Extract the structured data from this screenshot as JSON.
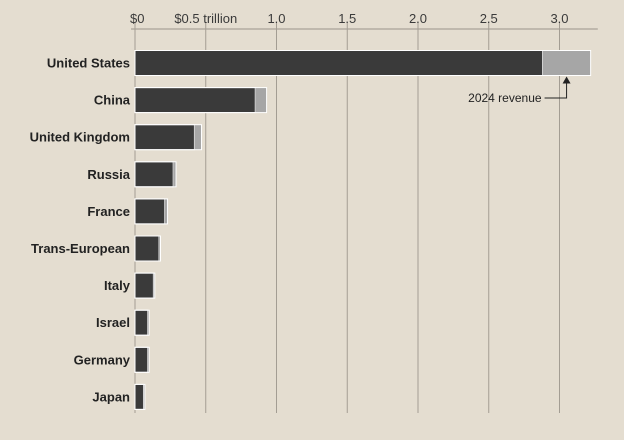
{
  "chart_data": {
    "type": "bar",
    "orientation": "horizontal",
    "stacked": true,
    "x_ticks": [
      {
        "value": 0,
        "label": "$0"
      },
      {
        "value": 0.5,
        "label": "$0.5 trillion"
      },
      {
        "value": 1.0,
        "label": "1.0"
      },
      {
        "value": 1.5,
        "label": "1.5"
      },
      {
        "value": 2.0,
        "label": "2.0"
      },
      {
        "value": 2.5,
        "label": "2.5"
      },
      {
        "value": 3.0,
        "label": "3.0"
      }
    ],
    "xlim": [
      0,
      3.2
    ],
    "categories": [
      "United States",
      "China",
      "United Kingdom",
      "Russia",
      "France",
      "Trans-European",
      "Italy",
      "Israel",
      "Germany",
      "Japan"
    ],
    "series": [
      {
        "values": [
          2.88,
          0.85,
          0.42,
          0.27,
          0.21,
          0.17,
          0.13,
          0.09,
          0.09,
          0.06
        ],
        "color": "#3a3a3a"
      },
      {
        "name": "2024 revenue",
        "values": [
          0.34,
          0.08,
          0.05,
          0.02,
          0.02,
          0.01,
          0.01,
          0.01,
          0.01,
          0.01
        ],
        "color": "#a6a6a6"
      }
    ],
    "annotation": {
      "text": "2024 revenue",
      "category": "United States"
    },
    "grid": true,
    "legend": "none"
  }
}
